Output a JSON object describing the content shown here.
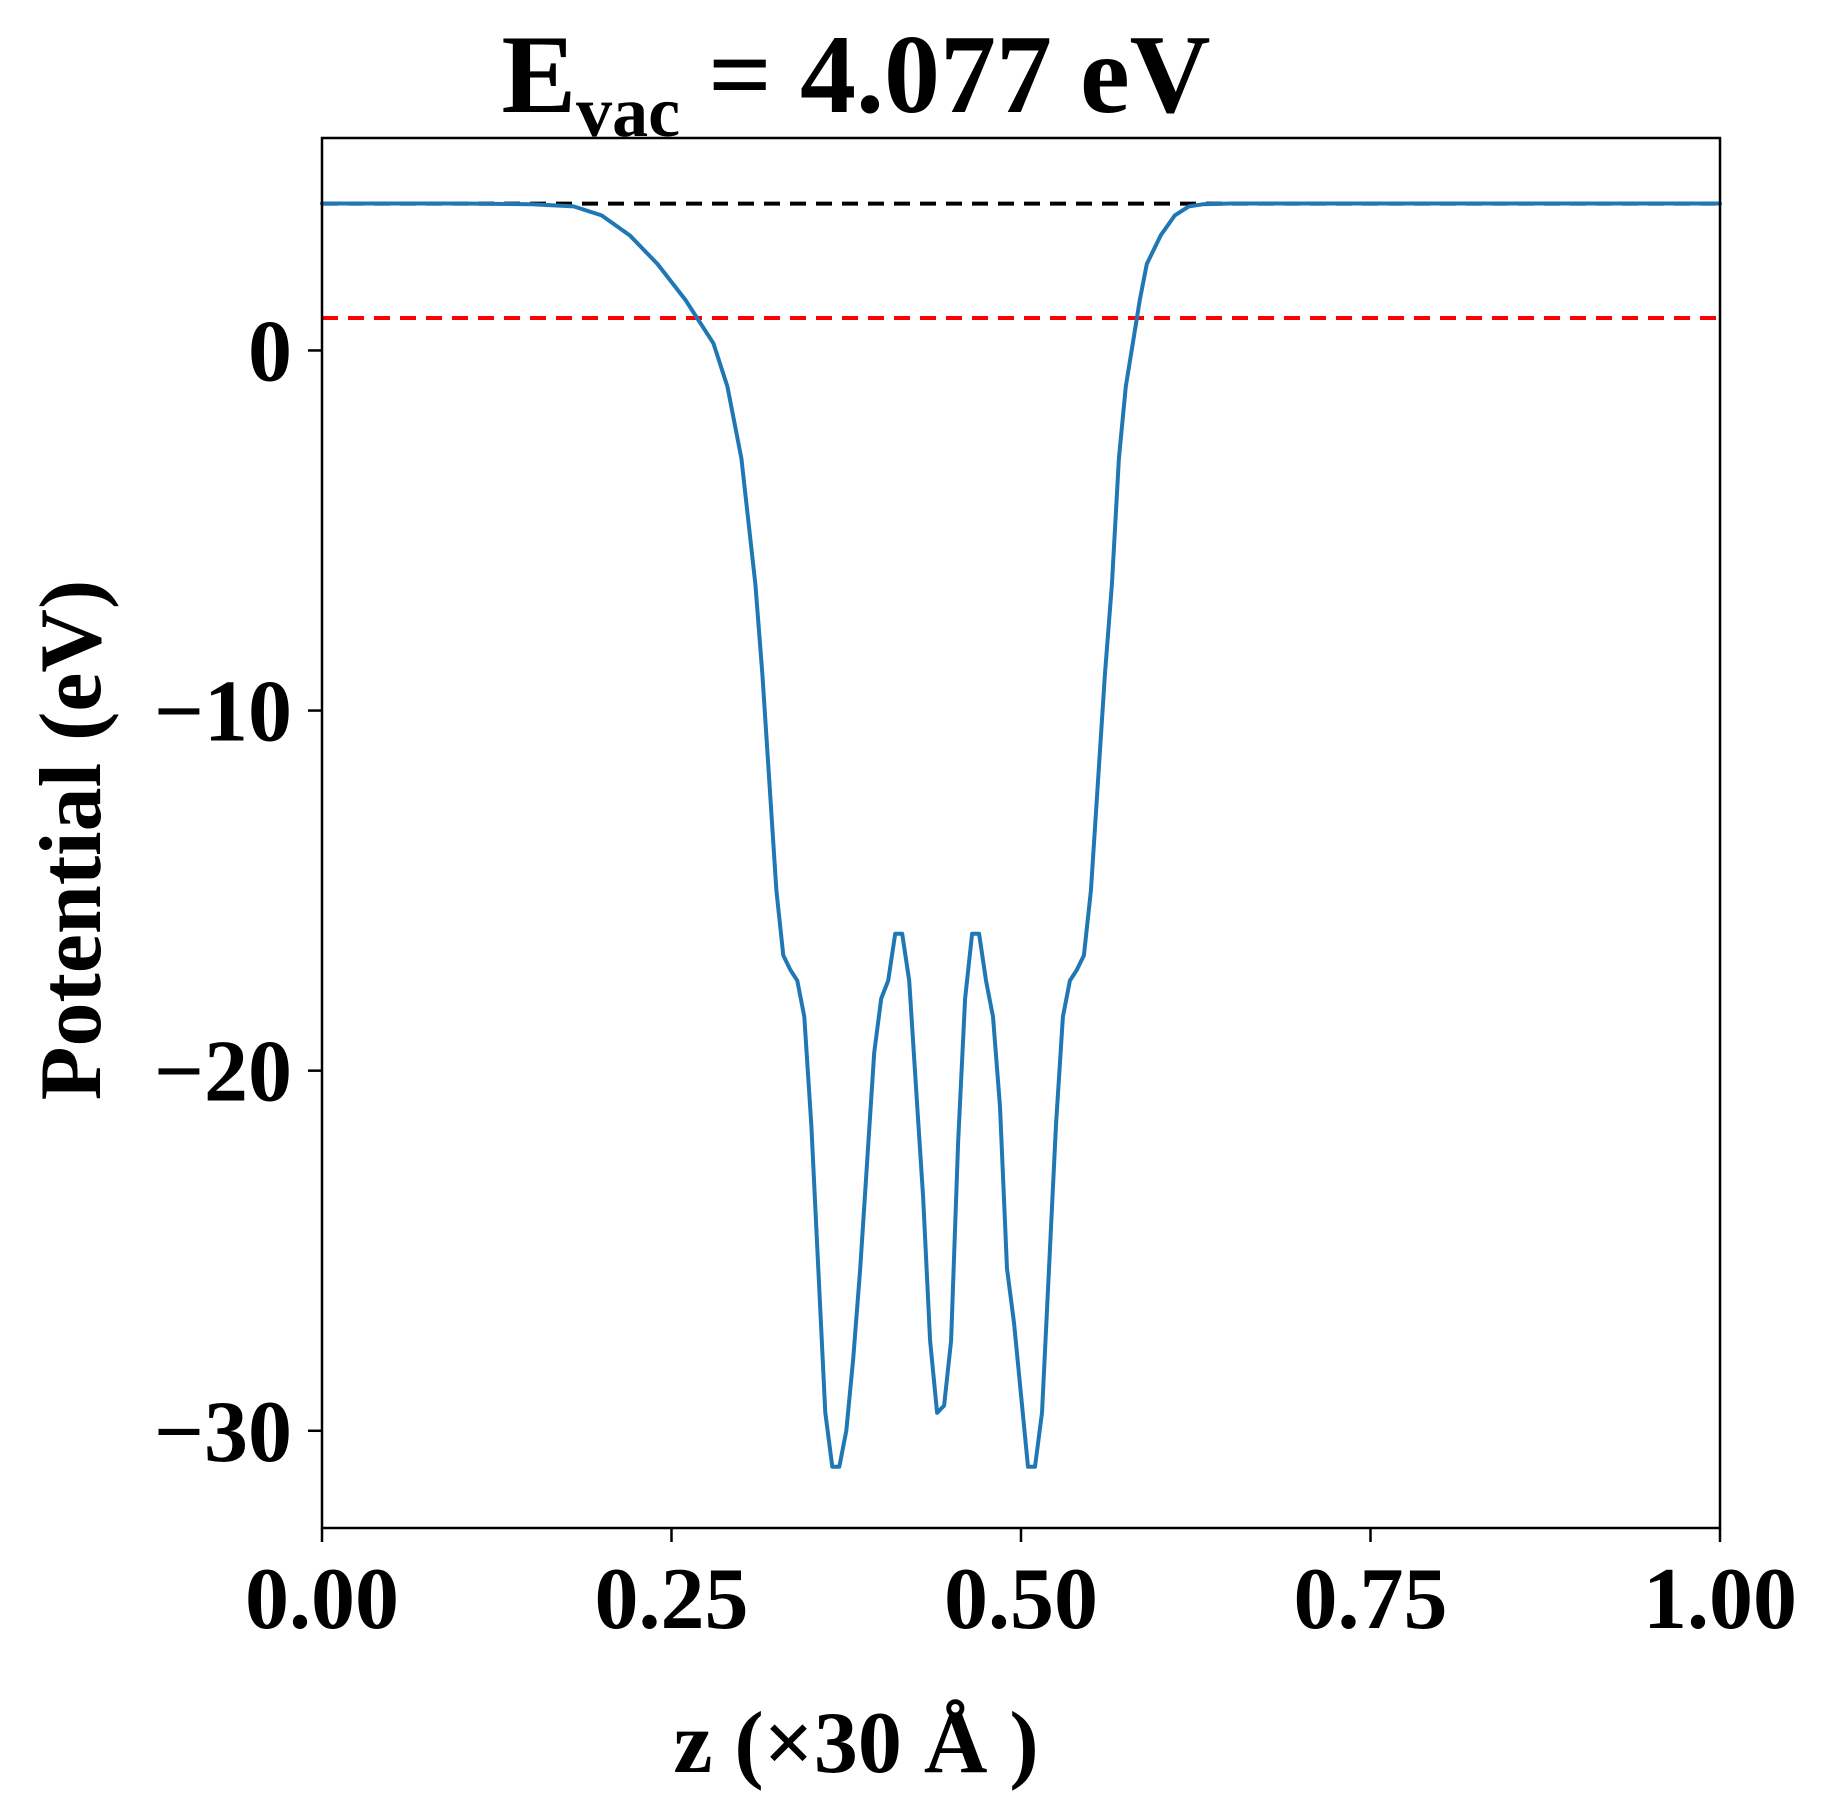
{
  "chart_data": {
    "type": "line",
    "title": {
      "main": "E",
      "subscript": "vac",
      "rest": " = 4.077 eV"
    },
    "xlabel": "z (×30 Å )",
    "ylabel": "Potential (eV)",
    "xlim": [
      0,
      1
    ],
    "ylim": [
      -32.7,
      5.9
    ],
    "xticks": [
      {
        "value": 0,
        "label": "0.00"
      },
      {
        "value": 0.25,
        "label": "0.25"
      },
      {
        "value": 0.5,
        "label": "0.50"
      },
      {
        "value": 0.75,
        "label": "0.75"
      },
      {
        "value": 1,
        "label": "1.00"
      }
    ],
    "yticks": [
      {
        "value": 0,
        "label": "0"
      },
      {
        "value": -10,
        "label": "−10"
      },
      {
        "value": -20,
        "label": "−20"
      },
      {
        "value": -30,
        "label": "−30"
      }
    ],
    "grid": false,
    "legend": "none",
    "series": [
      {
        "color": "#1f77b4",
        "x": [
          0.0,
          0.1,
          0.15,
          0.18,
          0.2,
          0.22,
          0.24,
          0.26,
          0.28,
          0.29,
          0.3,
          0.31,
          0.315,
          0.32,
          0.325,
          0.33,
          0.335,
          0.34,
          0.345,
          0.35,
          0.355,
          0.36,
          0.365,
          0.37,
          0.375,
          0.38,
          0.385,
          0.39,
          0.395,
          0.4,
          0.405,
          0.41,
          0.415,
          0.42,
          0.425,
          0.43,
          0.435,
          0.44,
          0.445,
          0.45,
          0.455,
          0.46,
          0.465,
          0.47,
          0.475,
          0.48,
          0.485,
          0.49,
          0.495,
          0.5,
          0.505,
          0.51,
          0.515,
          0.52,
          0.525,
          0.53,
          0.535,
          0.54,
          0.545,
          0.55,
          0.555,
          0.56,
          0.565,
          0.57,
          0.575,
          0.58,
          0.585,
          0.59,
          0.6,
          0.61,
          0.62,
          0.63,
          0.65,
          0.68,
          0.7,
          0.72,
          0.75,
          0.8,
          0.9,
          1.0
        ],
        "y": [
          4.08,
          4.08,
          4.06,
          4.0,
          3.75,
          3.2,
          2.4,
          1.4,
          0.2,
          -1.0,
          -3.0,
          -6.5,
          -9.0,
          -12.0,
          -15.0,
          -16.8,
          -17.2,
          -17.5,
          -18.5,
          -21.5,
          -25.5,
          -29.5,
          -31.0,
          -31.0,
          -30.0,
          -28.0,
          -25.5,
          -22.5,
          -19.5,
          -18.0,
          -17.5,
          -16.2,
          -16.2,
          -17.5,
          -20.5,
          -23.5,
          -27.5,
          -29.5,
          -29.3,
          -27.5,
          -22.0,
          -18.0,
          -16.2,
          -16.2,
          -17.5,
          -18.5,
          -21.0,
          -25.5,
          -27.0,
          -29.0,
          -31.0,
          -31.0,
          -29.5,
          -25.5,
          -21.5,
          -18.5,
          -17.5,
          -17.2,
          -16.8,
          -15.0,
          -12.0,
          -9.0,
          -6.5,
          -3.0,
          -1.0,
          0.2,
          1.4,
          2.4,
          3.2,
          3.75,
          4.0,
          4.06,
          4.08,
          4.08,
          4.08,
          4.08,
          4.08,
          4.08,
          4.08,
          4.08
        ]
      }
    ],
    "reference_lines": [
      {
        "y": 4.077,
        "color": "#000000",
        "style": "dashed"
      },
      {
        "y": 0.9,
        "color": "#ff0000",
        "style": "dashed"
      }
    ]
  }
}
